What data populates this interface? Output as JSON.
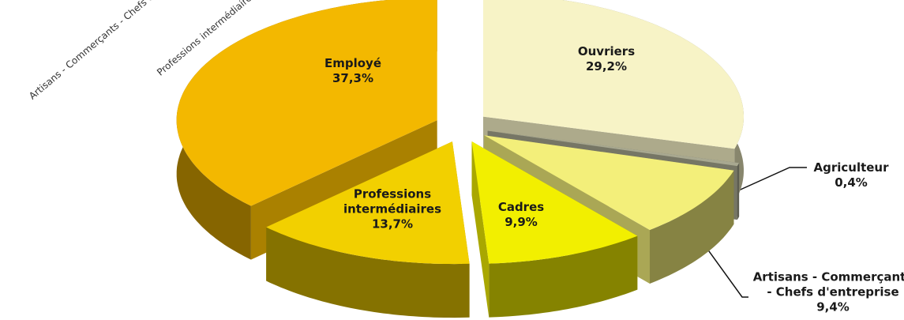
{
  "chart_data": {
    "type": "pie3d",
    "categories": [
      "Ouvriers",
      "Agriculteur",
      "Artisans -  Commerçants - Chefs d'entreprise",
      "Cadres",
      "Professions intermédiaires",
      "Employé"
    ],
    "values": [
      29.2,
      0.4,
      9.4,
      9.9,
      13.7,
      37.3
    ],
    "value_labels": [
      "29,2%",
      "0,4%",
      "9,4%",
      "9,9%",
      "13,7%",
      "37,3%"
    ],
    "colors": [
      "#f7f3c6",
      "#a8a890",
      "#f3ef7a",
      "#f2ef00",
      "#f2d000",
      "#f3b800"
    ]
  }
}
